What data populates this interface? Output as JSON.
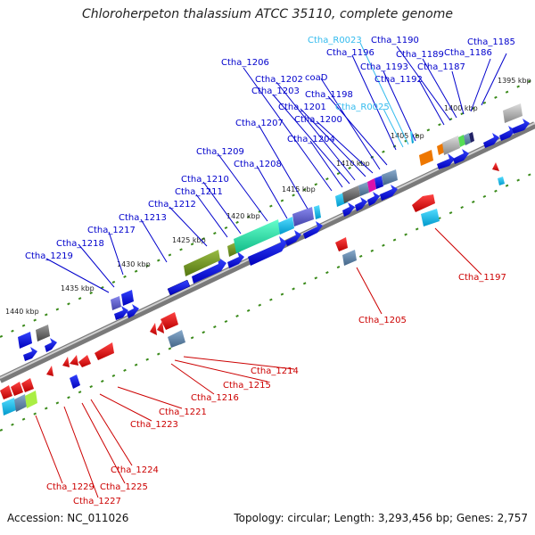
{
  "title": "Chloroherpeton thalassium ATCC 35110, complete genome",
  "footer": {
    "accession": "Accession: NC_011026",
    "summary": "Topology: circular; Length: 3,293,456 bp; Genes: 2,757"
  },
  "colors": {
    "forward_label": "#0000cc",
    "reverse_label": "#cc0000",
    "rna_label": "#33bbee",
    "backbone": "#888888",
    "tick": "#3a8a1a"
  },
  "ticks": [
    "1395 kbp",
    "1400 kbp",
    "1405 kbp",
    "1410 kbp",
    "1415 kbp",
    "1420 kbp",
    "1425 kbp",
    "1430 kbp",
    "1435 kbp",
    "1440 kbp"
  ],
  "labels": {
    "forward": [
      "Ctha_1185",
      "Ctha_1186",
      "Ctha_1187",
      "Ctha_1189",
      "Ctha_1190",
      "Ctha_1192",
      "Ctha_1193",
      "Ctha_1196",
      "Ctha_1198",
      "coaD",
      "Ctha_1200",
      "Ctha_1201",
      "Ctha_1202",
      "Ctha_1203",
      "Ctha_1204",
      "Ctha_1206",
      "Ctha_1207",
      "Ctha_1208",
      "Ctha_1209",
      "Ctha_1210",
      "Ctha_1211",
      "Ctha_1212",
      "Ctha_1213",
      "Ctha_1217",
      "Ctha_1218",
      "Ctha_1219"
    ],
    "rna": [
      "Ctha_R0023",
      "Ctha_R0025"
    ],
    "reverse": [
      "Ctha_1197",
      "Ctha_1205",
      "Ctha_1214",
      "Ctha_1215",
      "Ctha_1216",
      "Ctha_1221",
      "Ctha_1223",
      "Ctha_1224",
      "Ctha_1225",
      "Ctha_1227",
      "Ctha_1229"
    ]
  }
}
